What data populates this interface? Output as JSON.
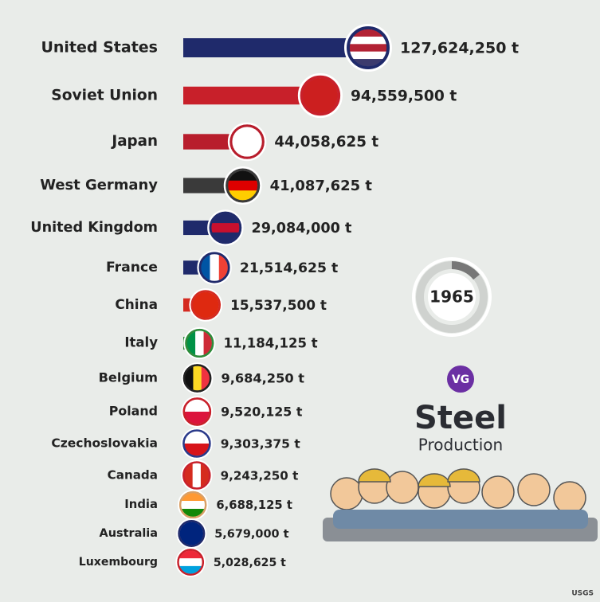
{
  "chart_data": {
    "type": "bar",
    "orientation": "horizontal",
    "title": "Steel",
    "subtitle": "Production",
    "logo": "VG",
    "year": "1965",
    "source": "USGS",
    "categories": [
      "United States",
      "Soviet Union",
      "Japan",
      "West Germany",
      "United Kingdom",
      "France",
      "China",
      "Italy",
      "Belgium",
      "Poland",
      "Czechoslovakia",
      "Canada",
      "India",
      "Australia",
      "Luxembourg"
    ],
    "values": [
      127624250,
      94559500,
      44058625,
      41087625,
      29084000,
      21514625,
      15537500,
      11184125,
      9684250,
      9520125,
      9303375,
      9243250,
      6688125,
      5679000,
      5028625
    ],
    "value_labels": [
      "127,624,250 t",
      "94,559,500 t",
      "44,058,625 t",
      "41,087,625 t",
      "29,084,000 t",
      "21,514,625 t",
      "15,537,500 t",
      "11,184,125 t",
      "9,684,250 t",
      "9,520,125 t",
      "9,303,375 t",
      "9,243,250 t",
      "6,688,125 t",
      "5,679,000 t",
      "5,028,625 t"
    ],
    "colors": [
      "#1f2a6b",
      "#c8202a",
      "#b81d2c",
      "#3a3a3a",
      "#1f2a6b",
      "#1f2a6b",
      "#d42a20",
      "#2e8b3a",
      "#222222",
      "#c8202a",
      "#2a3a8a",
      "#c8202a",
      "#d9a066",
      "#1f2a6b",
      "#c8202a"
    ],
    "flags": [
      {
        "dir": "h",
        "stripes": [
          "#b22234",
          "#ffffff",
          "#b22234",
          "#ffffff",
          "#3c3b6e"
        ]
      },
      {
        "dir": "h",
        "stripes": [
          "#cc1f1f"
        ]
      },
      {
        "dir": "h",
        "stripes": [
          "#ffffff"
        ]
      },
      {
        "dir": "h",
        "stripes": [
          "#111111",
          "#dd0000",
          "#ffce00"
        ]
      },
      {
        "dir": "h",
        "stripes": [
          "#1f2a6b",
          "#c8102e",
          "#1f2a6b"
        ]
      },
      {
        "dir": "v",
        "stripes": [
          "#0055a4",
          "#ffffff",
          "#ef4135"
        ]
      },
      {
        "dir": "h",
        "stripes": [
          "#de2910"
        ]
      },
      {
        "dir": "v",
        "stripes": [
          "#009246",
          "#ffffff",
          "#ce2b37"
        ]
      },
      {
        "dir": "v",
        "stripes": [
          "#111111",
          "#fdda24",
          "#ef3340"
        ]
      },
      {
        "dir": "h",
        "stripes": [
          "#ffffff",
          "#dc143c"
        ]
      },
      {
        "dir": "h",
        "stripes": [
          "#ffffff",
          "#d7141a"
        ]
      },
      {
        "dir": "v",
        "stripes": [
          "#d52b1e",
          "#ffffff",
          "#d52b1e"
        ]
      },
      {
        "dir": "h",
        "stripes": [
          "#ff9933",
          "#ffffff",
          "#138808"
        ]
      },
      {
        "dir": "h",
        "stripes": [
          "#00247d"
        ]
      },
      {
        "dir": "h",
        "stripes": [
          "#ed2939",
          "#ffffff",
          "#00a1de"
        ]
      }
    ]
  }
}
